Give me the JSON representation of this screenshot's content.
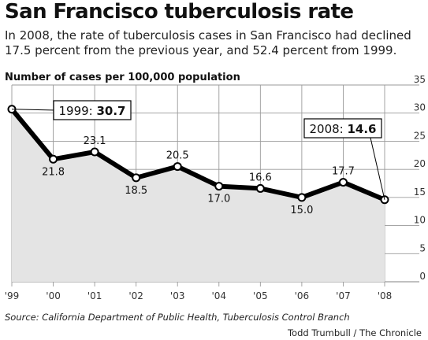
{
  "header": {
    "title": "San Francisco tuberculosis rate",
    "subtitle": "In 2008, the rate of tuberculosis cases in San Francisco had declined 17.5 percent from the previous year, and 52.4 percent from 1999."
  },
  "footer": {
    "source": "Source: California Department of Public Health, Tuberculosis Control Branch",
    "credit": "Todd Trumbull / The Chronicle"
  },
  "chart_data": {
    "type": "line",
    "title": "San Francisco tuberculosis rate",
    "ylabel": "Number of cases per 100,000 population",
    "xlabel": "",
    "categories": [
      "'99",
      "'00",
      "'01",
      "'02",
      "'03",
      "'04",
      "'05",
      "'06",
      "'07",
      "'08"
    ],
    "values": [
      30.7,
      21.8,
      23.1,
      18.5,
      20.5,
      17.0,
      16.6,
      15.0,
      17.7,
      14.6
    ],
    "value_labels": [
      "",
      "21.8",
      "23.1",
      "18.5",
      "20.5",
      "17.0",
      "16.6",
      "15.0",
      "17.7",
      ""
    ],
    "yticks": [
      "0",
      "5",
      "10",
      "15",
      "20",
      "25",
      "30",
      "35"
    ],
    "ylim": [
      0,
      35
    ],
    "grid": true,
    "callouts": [
      {
        "prefix": "1999: ",
        "value": "30.7",
        "index": 0
      },
      {
        "prefix": "2008: ",
        "value": "14.6",
        "index": 9
      }
    ],
    "colors": {
      "line": "#000000",
      "area": "#e4e4e4",
      "grid": "#9a9a9a"
    }
  }
}
